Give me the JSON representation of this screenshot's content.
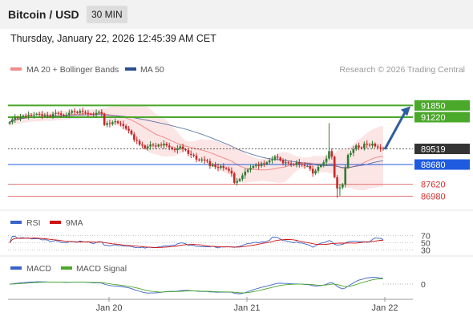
{
  "header": {
    "title": "Bitcoin / USD",
    "timeframe": "30 MIN",
    "timestamp": "Thursday, January 22, 2026 12:45:39 AM CET"
  },
  "legend": {
    "bb": {
      "label": "MA 20 + Bollinger Bands",
      "color": "#f08c8c"
    },
    "ma50": {
      "label": "MA 50",
      "color": "#2b4f8e"
    },
    "copyright": "Research © 2026 Trading Central"
  },
  "colors": {
    "up": "#2e7d32",
    "down": "#c62828",
    "support": "#e57373",
    "green": "#4aa82a",
    "blue": "#1e5be0",
    "price": "#333333",
    "arrow": "#2f5f9e",
    "band": "#fbdcdc"
  },
  "chart_data": [
    {
      "type": "candlestick",
      "panel": "price",
      "x_ticks": [
        "Jan 20",
        "Jan 21",
        "Jan 22"
      ],
      "ylim": [
        86400,
        93200
      ],
      "current_price": 89519,
      "levels": [
        {
          "label": "91850",
          "value": 91850,
          "kind": "resistance"
        },
        {
          "label": "91220",
          "value": 91220,
          "kind": "resistance"
        },
        {
          "label": "89519",
          "value": 89519,
          "kind": "price"
        },
        {
          "label": "88680",
          "value": 88680,
          "kind": "pivot"
        },
        {
          "label": "87620",
          "value": 87620,
          "kind": "support"
        },
        {
          "label": "86980",
          "value": 86980,
          "kind": "support"
        }
      ],
      "projection": {
        "from": 89500,
        "to": 91800,
        "direction": "up"
      },
      "close": [
        90950,
        91100,
        91200,
        91150,
        91250,
        91300,
        91280,
        91350,
        91300,
        91350,
        91400,
        91380,
        91300,
        91350,
        91320,
        91250,
        91400,
        91450,
        91420,
        91350,
        91300,
        91350,
        91450,
        91550,
        91500,
        91450,
        91550,
        91500,
        91450,
        91400,
        91380,
        91350,
        91450,
        91500,
        91400,
        90800,
        90900,
        90850,
        90950,
        91000,
        90900,
        90850,
        90750,
        90600,
        90500,
        90300,
        90000,
        89950,
        89750,
        89700,
        89550,
        89650,
        89750,
        89700,
        89650,
        89750,
        89700,
        89800,
        89700,
        89600,
        89500,
        89450,
        89550,
        89650,
        89500,
        89450,
        89250,
        89200,
        89150,
        88950,
        88900,
        88950,
        88900,
        88850,
        88600,
        88700,
        88550,
        88500,
        88600,
        88500,
        88450,
        88350,
        88200,
        87700,
        87800,
        87900,
        88100,
        88300,
        88400,
        88500,
        88600,
        88650,
        88600,
        88750,
        88700,
        88800,
        88900,
        88950,
        89100,
        89050,
        88900,
        88750,
        88800,
        88750,
        88700,
        88650,
        88800,
        88700,
        88650,
        88600,
        88600,
        88450,
        88200,
        88350,
        88550,
        88650,
        88800,
        89000,
        89400,
        89100,
        88000,
        87400,
        87450,
        87600,
        88500,
        89200,
        89300,
        89500,
        89700,
        89600,
        89550,
        89800,
        89750,
        89700,
        89800,
        89650,
        89600,
        89550,
        89519
      ]
    },
    {
      "type": "line",
      "panel": "RSI",
      "series": [
        {
          "name": "RSI",
          "color": "#3a62c9"
        },
        {
          "name": "9MA",
          "color": "#d01010"
        }
      ],
      "levels": [
        70,
        50,
        30
      ]
    },
    {
      "type": "line",
      "panel": "MACD",
      "series": [
        {
          "name": "MACD",
          "color": "#3a62c9"
        },
        {
          "name": "MACD Signal",
          "color": "#4aa82a"
        }
      ],
      "levels": [
        0
      ]
    }
  ]
}
